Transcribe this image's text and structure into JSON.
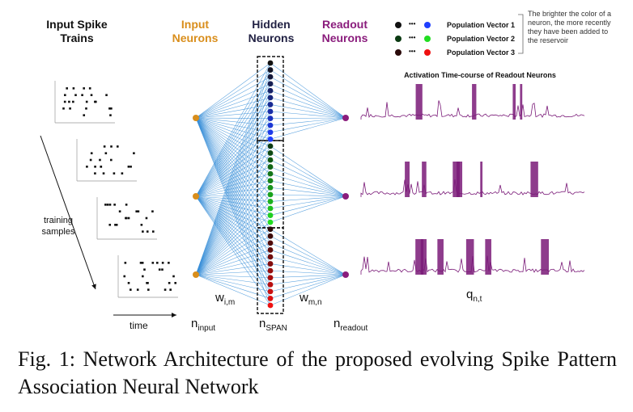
{
  "labels": {
    "input_spike_trains": "Input Spike\nTrains",
    "input_neurons": "Input\nNeurons",
    "hidden_neurons": "Hidden\nNeurons",
    "readout_neurons": "Readout\nNeurons",
    "training_samples": "training\nsamples",
    "time": "time",
    "w_im": "w",
    "w_im_sub": "i,m",
    "w_mn": "w",
    "w_mn_sub": "m,n",
    "n_input": "n",
    "n_input_sub": "input",
    "n_span": "n",
    "n_span_sub": "SPAN",
    "n_readout": "n",
    "n_readout_sub": "readout",
    "q_nt": "q",
    "q_nt_sub": "n,t",
    "activation_title": "Activation Time-course of Readout Neurons"
  },
  "legend": {
    "ellipsis": "•••",
    "items": [
      {
        "label": "Population Vector 1",
        "dark": "#111111",
        "bright": "#1f3fff"
      },
      {
        "label": "Population Vector 2",
        "dark": "#0b3a12",
        "bright": "#22dd22"
      },
      {
        "label": "Population Vector 3",
        "dark": "#2a0a0a",
        "bright": "#ee1111"
      }
    ],
    "note": "The brighter the color of a neuron, the more recently they have been added to the reservoir"
  },
  "colors": {
    "input": "#d98e1c",
    "readout": "#8a1c7c",
    "connection": "#3a8fd8",
    "trace": "#7a1a78"
  },
  "caption": "Fig. 1: Network Architecture of the proposed evolving Spike Pattern Association Neural Network"
}
